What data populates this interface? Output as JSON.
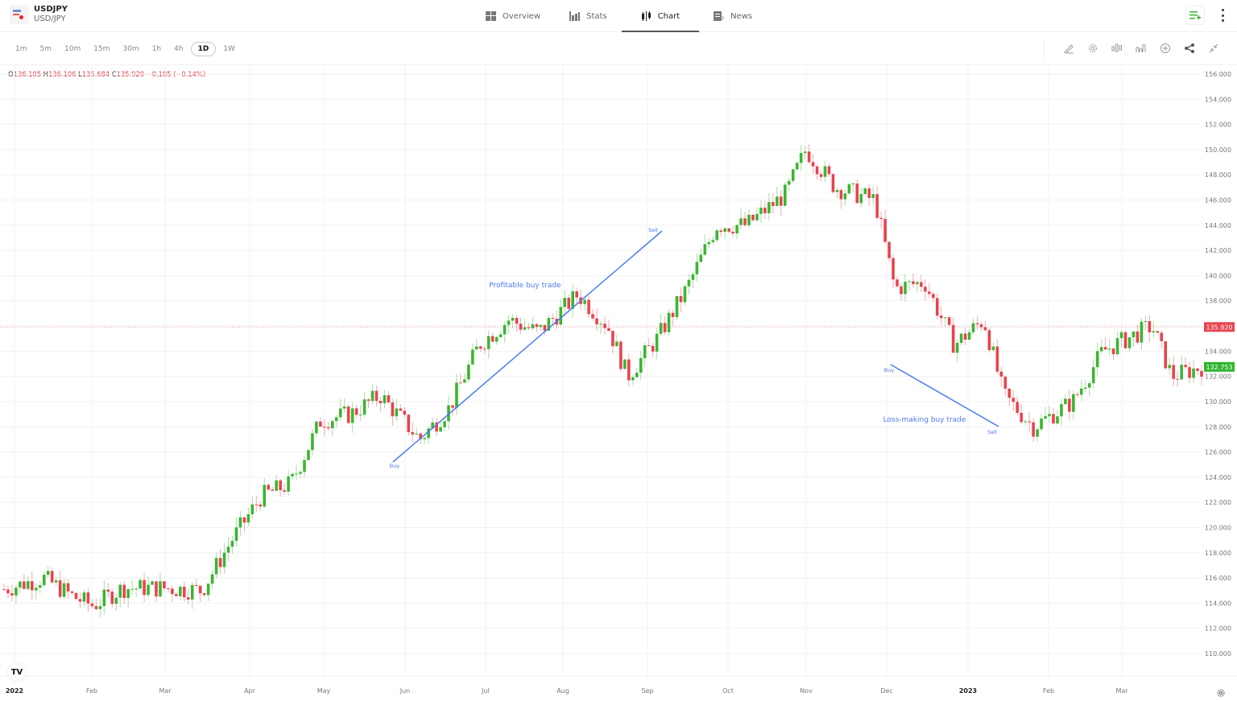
{
  "symbol": {
    "ticker": "USDJPY",
    "pair": "USD/JPY"
  },
  "nav": {
    "tabs": [
      {
        "label": "Overview",
        "icon": "grid-icon",
        "active": false
      },
      {
        "label": "Stats",
        "icon": "bar-stats-icon",
        "active": false
      },
      {
        "label": "Chart",
        "icon": "candles-icon",
        "active": true
      },
      {
        "label": "News",
        "icon": "news-icon",
        "active": false
      }
    ]
  },
  "timeframes": [
    "1m",
    "5m",
    "10m",
    "15m",
    "30m",
    "1h",
    "4h",
    "1D",
    "1W"
  ],
  "active_timeframe": "1D",
  "toolbar": [
    "draw-icon",
    "settings-icon",
    "indicators-icon",
    "chart-type-icon",
    "add-icon",
    "share-icon",
    "collapse-icon"
  ],
  "ohlc": {
    "o_label": "O",
    "o": "136.105",
    "h_label": "H",
    "h": "136.106",
    "l_label": "L",
    "l": "135.684",
    "c_label": "C",
    "c": "135.920",
    "change": "−0.185 (−0.14%)"
  },
  "price_labels": {
    "last": "135.920",
    "last_color": "#e8434f",
    "live": "132.753",
    "live_color": "#2fb52f"
  },
  "colors": {
    "up": "#3cb532",
    "down": "#e8434f",
    "annotation": "#4a7bef",
    "grid": "#f1f1f1"
  },
  "annotations": {
    "profitable": {
      "label": "Profitable buy trade",
      "buy_label": "Buy",
      "sell_label": "Sell"
    },
    "loss": {
      "label": "Loss-making buy trade",
      "buy_label": "Buy",
      "sell_label": "Sell"
    }
  },
  "chart_data": {
    "type": "candlestick",
    "title": "USDJPY daily",
    "y_ticks": [
      156,
      154,
      152,
      150,
      148,
      146,
      144,
      142,
      140,
      138,
      136,
      134,
      132,
      130,
      128,
      126,
      124,
      122,
      120,
      118,
      116,
      114,
      112,
      110
    ],
    "ylim": [
      110,
      156
    ],
    "x_ticks": [
      "2022",
      "Feb",
      "Mar",
      "Apr",
      "May",
      "Jun",
      "Jul",
      "Aug",
      "Sep",
      "Oct",
      "Nov",
      "Dec",
      "2023",
      "Feb",
      "Mar"
    ],
    "close_path": [
      [
        2022.0,
        115.1
      ],
      [
        2022.04,
        116.0
      ],
      [
        2022.07,
        114.5
      ],
      [
        2022.09,
        113.8
      ],
      [
        2022.12,
        115.2
      ],
      [
        2022.16,
        115.2
      ],
      [
        2022.2,
        115.0
      ],
      [
        2022.23,
        119.0
      ],
      [
        2022.26,
        122.5
      ],
      [
        2022.29,
        123.5
      ],
      [
        2022.32,
        128.5
      ],
      [
        2022.35,
        129.0
      ],
      [
        2022.38,
        130.5
      ],
      [
        2022.42,
        127.0
      ],
      [
        2022.45,
        129.5
      ],
      [
        2022.48,
        134.5
      ],
      [
        2022.51,
        136.5
      ],
      [
        2022.54,
        135.5
      ],
      [
        2022.58,
        138.5
      ],
      [
        2022.61,
        136.0
      ],
      [
        2022.63,
        132.0
      ],
      [
        2022.66,
        135.0
      ],
      [
        2022.69,
        139.0
      ],
      [
        2022.72,
        144.0
      ],
      [
        2022.75,
        144.0
      ],
      [
        2022.79,
        146.5
      ],
      [
        2022.81,
        150.0
      ],
      [
        2022.84,
        147.0
      ],
      [
        2022.88,
        146.0
      ],
      [
        2022.9,
        139.0
      ],
      [
        2022.93,
        139.5
      ],
      [
        2022.96,
        134.5
      ],
      [
        2022.99,
        136.5
      ],
      [
        2023.01,
        130.5
      ],
      [
        2023.04,
        128.0
      ],
      [
        2023.08,
        130.0
      ],
      [
        2023.11,
        134.0
      ],
      [
        2023.16,
        136.0
      ],
      [
        2023.18,
        132.0
      ],
      [
        2023.21,
        132.75
      ]
    ],
    "trades": [
      {
        "name": "Profitable buy trade",
        "buy": 126.7,
        "sell": 143.9
      },
      {
        "name": "Loss-making buy trade",
        "buy": 134.0,
        "sell": 129.2
      }
    ],
    "last_price": 135.92,
    "live_price": 132.753,
    "grid": true
  }
}
